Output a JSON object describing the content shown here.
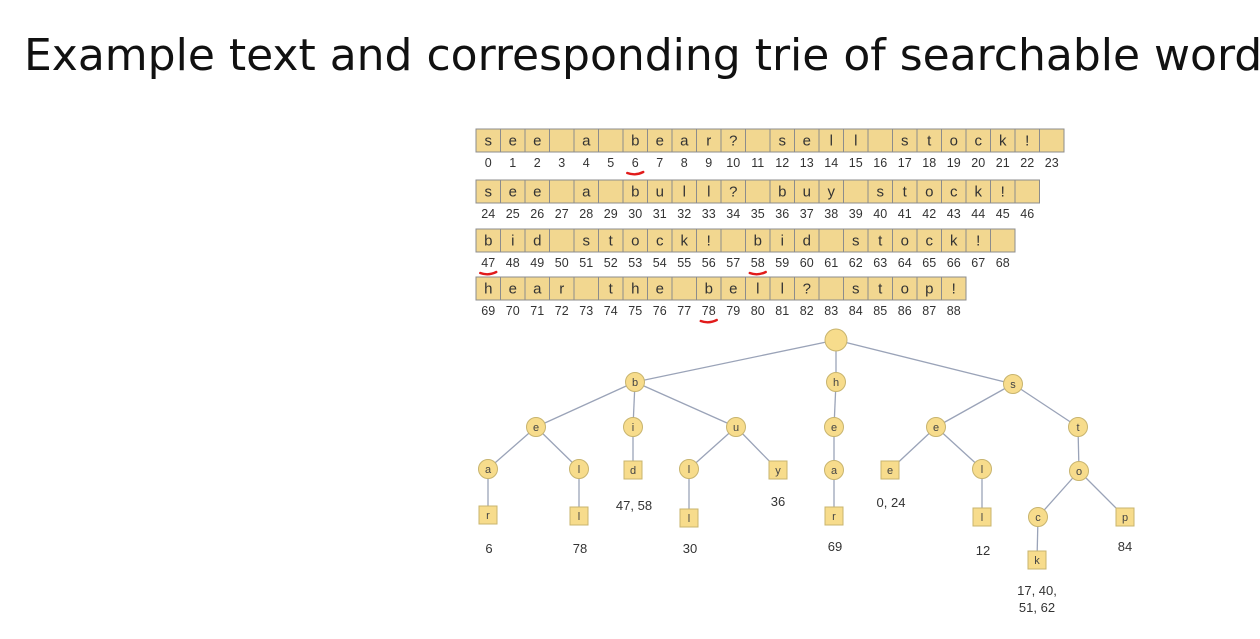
{
  "title": "Example text and corresponding trie of searchable words:",
  "text_rows": [
    {
      "chars": [
        "s",
        "e",
        "e",
        "",
        "a",
        "",
        "b",
        "e",
        "a",
        "r",
        "?",
        "",
        "s",
        "e",
        "l",
        "l",
        "",
        "s",
        "t",
        "o",
        "c",
        "k",
        "!",
        ""
      ],
      "indices": [
        "0",
        "1",
        "2",
        "3",
        "4",
        "5",
        "6",
        "7",
        "8",
        "9",
        "10",
        "11",
        "12",
        "13",
        "14",
        "15",
        "16",
        "17",
        "18",
        "19",
        "20",
        "21",
        "22",
        "23"
      ],
      "marked_index": 6
    },
    {
      "chars": [
        "s",
        "e",
        "e",
        "",
        "a",
        "",
        "b",
        "u",
        "l",
        "l",
        "?",
        "",
        "b",
        "u",
        "y",
        "",
        "s",
        "t",
        "o",
        "c",
        "k",
        "!",
        ""
      ],
      "indices": [
        "24",
        "25",
        "26",
        "27",
        "28",
        "29",
        "30",
        "31",
        "32",
        "33",
        "34",
        "35",
        "36",
        "37",
        "38",
        "39",
        "40",
        "41",
        "42",
        "43",
        "44",
        "45",
        "46"
      ],
      "marked_index": null
    },
    {
      "chars": [
        "b",
        "i",
        "d",
        "",
        "s",
        "t",
        "o",
        "c",
        "k",
        "!",
        "",
        "b",
        "i",
        "d",
        "",
        "s",
        "t",
        "o",
        "c",
        "k",
        "!",
        ""
      ],
      "indices": [
        "47",
        "48",
        "49",
        "50",
        "51",
        "52",
        "53",
        "54",
        "55",
        "56",
        "57",
        "58",
        "59",
        "60",
        "61",
        "62",
        "63",
        "64",
        "65",
        "66",
        "67",
        "68"
      ],
      "marked_indices": [
        0,
        11
      ]
    },
    {
      "chars": [
        "h",
        "e",
        "a",
        "r",
        "",
        "t",
        "h",
        "e",
        "",
        "b",
        "e",
        "l",
        "l",
        "?",
        "",
        "s",
        "t",
        "o",
        "p",
        "!"
      ],
      "indices": [
        "69",
        "70",
        "71",
        "72",
        "73",
        "74",
        "75",
        "76",
        "77",
        "78",
        "79",
        "80",
        "81",
        "82",
        "83",
        "84",
        "85",
        "86",
        "87",
        "88"
      ],
      "marked_index": 9
    }
  ],
  "trie": {
    "nodes": [
      {
        "id": "root",
        "char": "",
        "kind": "root"
      },
      {
        "id": "b",
        "char": "b",
        "kind": "internal",
        "parent": "root"
      },
      {
        "id": "h",
        "char": "h",
        "kind": "internal",
        "parent": "root"
      },
      {
        "id": "s",
        "char": "s",
        "kind": "internal",
        "parent": "root"
      },
      {
        "id": "be",
        "char": "e",
        "kind": "internal",
        "parent": "b"
      },
      {
        "id": "bi",
        "char": "i",
        "kind": "internal",
        "parent": "b"
      },
      {
        "id": "bu",
        "char": "u",
        "kind": "internal",
        "parent": "b"
      },
      {
        "id": "he",
        "char": "e",
        "kind": "internal",
        "parent": "h"
      },
      {
        "id": "se",
        "char": "e",
        "kind": "internal",
        "parent": "s"
      },
      {
        "id": "st",
        "char": "t",
        "kind": "internal",
        "parent": "s"
      },
      {
        "id": "bea",
        "char": "a",
        "kind": "internal",
        "parent": "be"
      },
      {
        "id": "bel",
        "char": "l",
        "kind": "internal",
        "parent": "be"
      },
      {
        "id": "bid",
        "char": "d",
        "kind": "leaf",
        "parent": "bi",
        "label": "47, 58"
      },
      {
        "id": "bul",
        "char": "l",
        "kind": "internal",
        "parent": "bu"
      },
      {
        "id": "buy",
        "char": "y",
        "kind": "leaf",
        "parent": "bu",
        "label": "36"
      },
      {
        "id": "hea",
        "char": "a",
        "kind": "internal",
        "parent": "he"
      },
      {
        "id": "see",
        "char": "e",
        "kind": "leaf",
        "parent": "se",
        "label": "0, 24"
      },
      {
        "id": "sel",
        "char": "l",
        "kind": "internal",
        "parent": "se"
      },
      {
        "id": "sto",
        "char": "o",
        "kind": "internal",
        "parent": "st"
      },
      {
        "id": "bear",
        "char": "r",
        "kind": "leaf",
        "parent": "bea",
        "label": "6"
      },
      {
        "id": "bell",
        "char": "l",
        "kind": "leaf",
        "parent": "bel",
        "label": "78"
      },
      {
        "id": "bull",
        "char": "l",
        "kind": "leaf",
        "parent": "bul",
        "label": "30"
      },
      {
        "id": "hear",
        "char": "r",
        "kind": "leaf",
        "parent": "hea",
        "label": "69"
      },
      {
        "id": "sell",
        "char": "l",
        "kind": "leaf",
        "parent": "sel",
        "label": "12"
      },
      {
        "id": "stoc",
        "char": "c",
        "kind": "internal",
        "parent": "sto"
      },
      {
        "id": "stop",
        "char": "p",
        "kind": "leaf",
        "parent": "sto",
        "label": "84"
      },
      {
        "id": "stock",
        "char": "k",
        "kind": "leaf",
        "parent": "stoc",
        "label": "17, 40, 51, 62"
      }
    ]
  },
  "colors": {
    "cell_fill": "#f2d790",
    "cell_stroke": "#8c8c8c",
    "node_fill": "#f7dc8c",
    "node_stroke": "#c8b46e",
    "edge": "#9aa3b8",
    "mark": "#e11b1b"
  }
}
